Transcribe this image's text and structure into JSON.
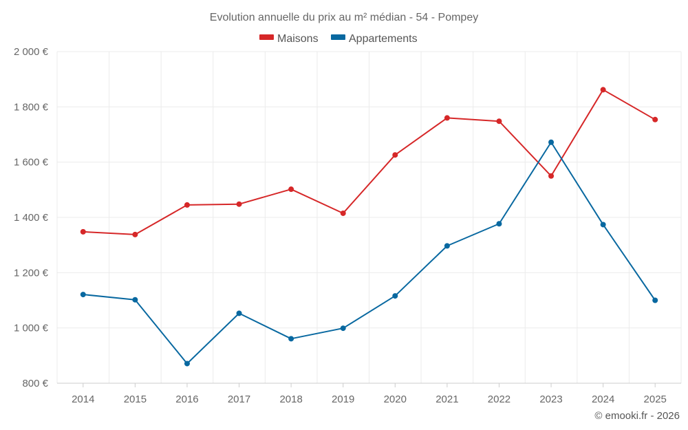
{
  "chart_data": {
    "type": "line",
    "title": "Evolution annuelle du prix au m² médian - 54 - Pompey",
    "categories": [
      "2014",
      "2015",
      "2016",
      "2017",
      "2018",
      "2019",
      "2020",
      "2021",
      "2022",
      "2023",
      "2024",
      "2025"
    ],
    "series": [
      {
        "name": "Maisons",
        "color": "#d62728",
        "values": [
          1348,
          1338,
          1445,
          1448,
          1502,
          1415,
          1626,
          1760,
          1748,
          1550,
          1862,
          1754
        ]
      },
      {
        "name": "Appartements",
        "color": "#0868a0",
        "values": [
          1121,
          1102,
          871,
          1053,
          961,
          999,
          1116,
          1297,
          1377,
          1672,
          1374,
          1100
        ]
      }
    ],
    "ylim": [
      800,
      2000
    ],
    "yticks": [
      800,
      1000,
      1200,
      1400,
      1600,
      1800,
      2000
    ],
    "ytick_labels": [
      "800 €",
      "1 000 €",
      "1 200 €",
      "1 400 €",
      "1 600 €",
      "1 800 €",
      "2 000 €"
    ],
    "xlabel": "",
    "ylabel": "",
    "legend_position": "top-center",
    "grid": true
  },
  "credit": "© emooki.fr - 2026"
}
